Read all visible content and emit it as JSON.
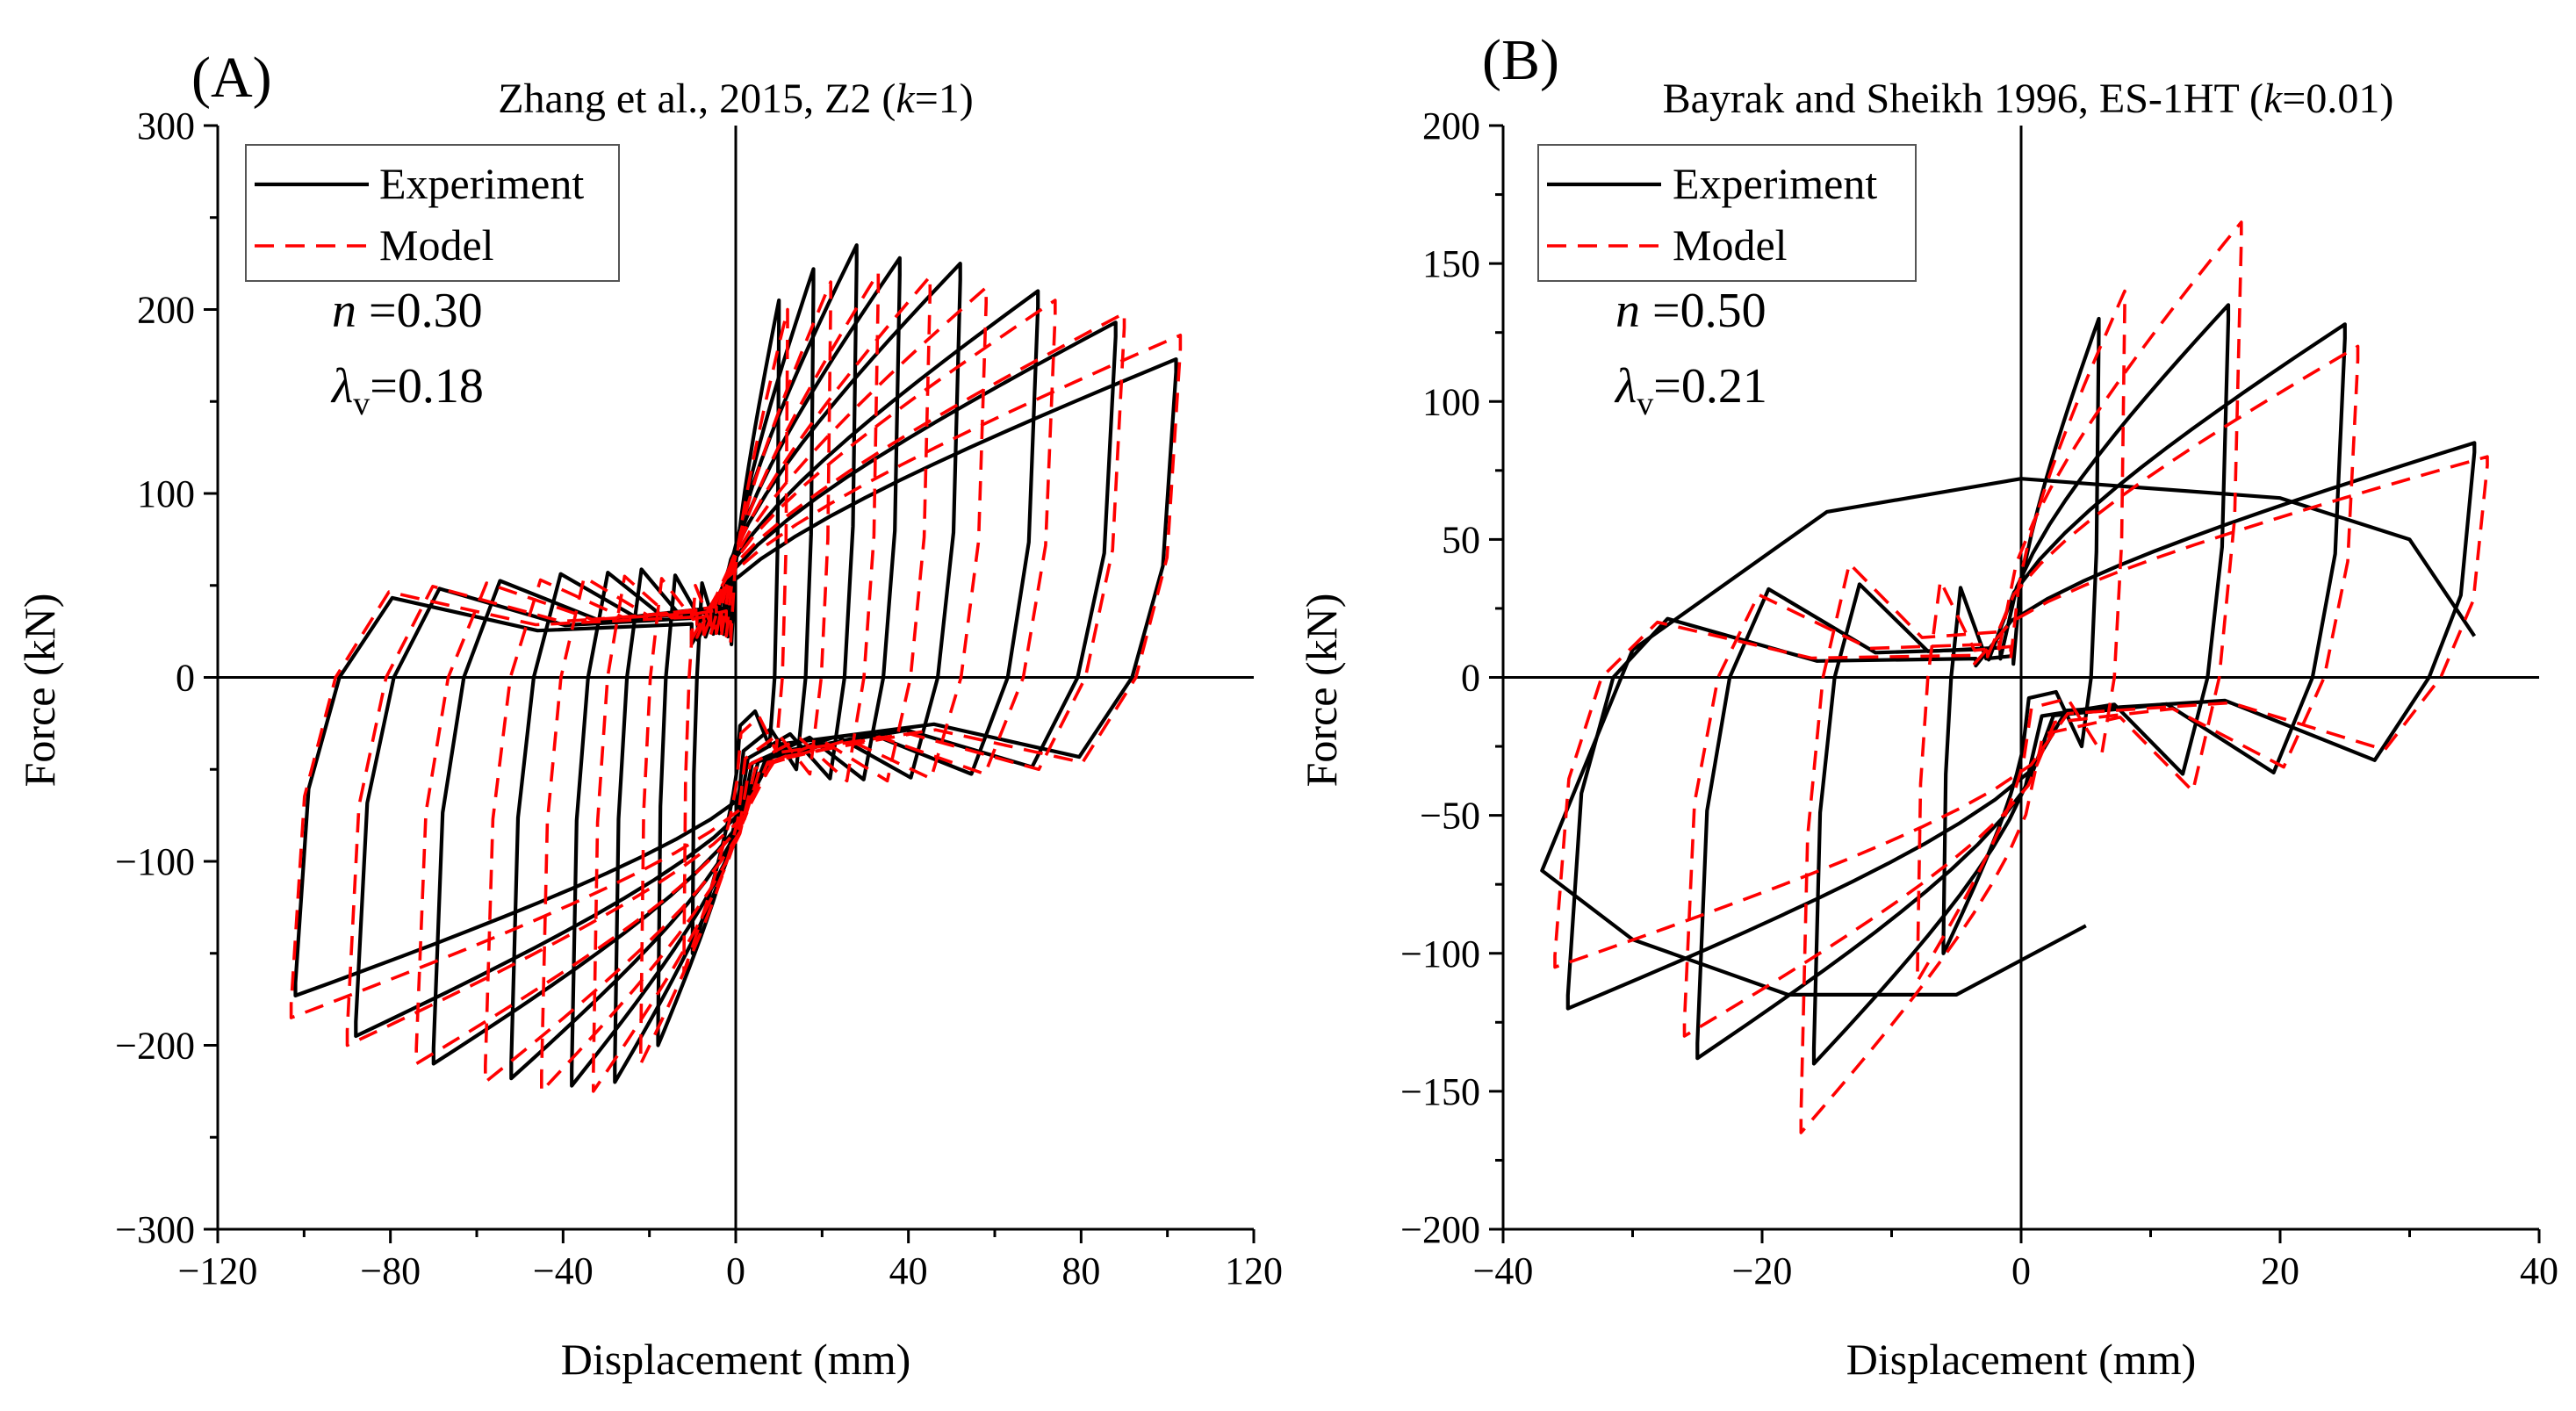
{
  "chart_data": [
    {
      "type": "line",
      "panel_label": "(A)",
      "title": "Zhang et al., 2015, Z2 (k=1)",
      "title_parts": {
        "before": "Zhang et al., 2015, Z2 (",
        "italic": "k",
        "after": "=1)"
      },
      "xlabel": "Displacement (mm)",
      "ylabel": "Force (kN)",
      "xlim": [
        -120,
        120
      ],
      "ylim": [
        -300,
        300
      ],
      "x_ticks": [
        -120,
        -80,
        -40,
        0,
        40,
        80,
        120
      ],
      "y_ticks": [
        -300,
        -200,
        -100,
        0,
        100,
        200,
        300
      ],
      "x_tick_labels": [
        "−120",
        "−80",
        "−40",
        "0",
        "40",
        "80",
        "120"
      ],
      "y_tick_labels": [
        "−300",
        "−200",
        "−100",
        "0",
        "100",
        "200",
        "300"
      ],
      "legend": [
        "Experiment",
        "Model"
      ],
      "legend_position": "top-left",
      "annotations": {
        "n_italic": "n",
        "n_value": " =0.30",
        "lambda_symbol": "λ",
        "lambda_sub": "v",
        "lambda_value": "=0.18"
      },
      "series": [
        {
          "name": "Experiment",
          "style": "solid-black",
          "cycles": [
            {
              "d": 10,
              "fp": 205,
              "fn": -150,
              "pinch": 0.35
            },
            {
              "d": 18,
              "fp": 222,
              "fn": -200,
              "pinch": 0.4
            },
            {
              "d": 28,
              "fp": 235,
              "fn": -220,
              "pinch": 0.4
            },
            {
              "d": 38,
              "fp": 228,
              "fn": -222,
              "pinch": 0.42
            },
            {
              "d": 52,
              "fp": 225,
              "fn": -218,
              "pinch": 0.42
            },
            {
              "d": 70,
              "fp": 210,
              "fn": -210,
              "pinch": 0.42
            },
            {
              "d": 88,
              "fp": 193,
              "fn": -195,
              "pinch": 0.42
            },
            {
              "d": 102,
              "fp": 173,
              "fn": -173,
              "pinch": 0.42
            }
          ]
        },
        {
          "name": "Model",
          "style": "dashed-red",
          "cycles": [
            {
              "d": 12,
              "fp": 200,
              "fn": -160,
              "pinch": 0.38
            },
            {
              "d": 22,
              "fp": 215,
              "fn": -210,
              "pinch": 0.42
            },
            {
              "d": 33,
              "fp": 220,
              "fn": -225,
              "pinch": 0.42
            },
            {
              "d": 45,
              "fp": 218,
              "fn": -225,
              "pinch": 0.44
            },
            {
              "d": 58,
              "fp": 212,
              "fn": -220,
              "pinch": 0.44
            },
            {
              "d": 74,
              "fp": 205,
              "fn": -210,
              "pinch": 0.44
            },
            {
              "d": 90,
              "fp": 198,
              "fn": -200,
              "pinch": 0.44
            },
            {
              "d": 103,
              "fp": 186,
              "fn": -185,
              "pinch": 0.44
            }
          ]
        }
      ]
    },
    {
      "type": "line",
      "panel_label": "(B)",
      "title": "Bayrak and Sheikh 1996, ES-1HT (k=0.01)",
      "title_parts": {
        "before": "Bayrak and Sheikh 1996, ES-1HT (",
        "italic": "k",
        "after": "=0.01)"
      },
      "xlabel": "Displacement (mm)",
      "ylabel": "Force (kN)",
      "xlim": [
        -40,
        40
      ],
      "ylim": [
        -200,
        200
      ],
      "x_ticks": [
        -40,
        -20,
        0,
        20,
        40
      ],
      "y_ticks": [
        -200,
        -150,
        -100,
        -50,
        0,
        50,
        100,
        150,
        200
      ],
      "x_tick_labels": [
        "−40",
        "−20",
        "0",
        "20",
        "40"
      ],
      "y_tick_labels": [
        "−200",
        "−150",
        "−100",
        "−50",
        "0",
        "50",
        "100",
        "150",
        "200"
      ],
      "legend": [
        "Experiment",
        "Model"
      ],
      "legend_position": "top-left",
      "annotations": {
        "n_italic": "n",
        "n_value": " =0.50",
        "lambda_symbol": "λ",
        "lambda_sub": "v",
        "lambda_value": "=0.21"
      },
      "series": [
        {
          "name": "Experiment",
          "style": "solid-black",
          "cycles": [
            {
              "d": 6,
              "fp": 130,
              "fn": -100,
              "pinch": 0.15
            },
            {
              "d": 16,
              "fp": 135,
              "fn": -140,
              "pinch": 0.2
            },
            {
              "d": 25,
              "fp": 128,
              "fn": -138,
              "pinch": 0.2
            },
            {
              "d": 35,
              "fp": 85,
              "fn": -120,
              "pinch": 0.2
            }
          ],
          "final_excursion": [
            [
              35,
              15
            ],
            [
              30,
              50
            ],
            [
              20,
              65
            ],
            [
              0,
              72
            ],
            [
              -15,
              60
            ],
            [
              -30,
              10
            ],
            [
              -37,
              -70
            ],
            [
              -30,
              -95
            ],
            [
              -18,
              -115
            ],
            [
              -5,
              -115
            ],
            [
              5,
              -90
            ]
          ]
        },
        {
          "name": "Model",
          "style": "dashed-red",
          "cycles": [
            {
              "d": 8,
              "fp": 140,
              "fn": -110,
              "pinch": 0.2
            },
            {
              "d": 17,
              "fp": 165,
              "fn": -165,
              "pinch": 0.25
            },
            {
              "d": 26,
              "fp": 120,
              "fn": -130,
              "pinch": 0.25
            },
            {
              "d": 36,
              "fp": 80,
              "fn": -105,
              "pinch": 0.25
            }
          ]
        }
      ]
    }
  ]
}
